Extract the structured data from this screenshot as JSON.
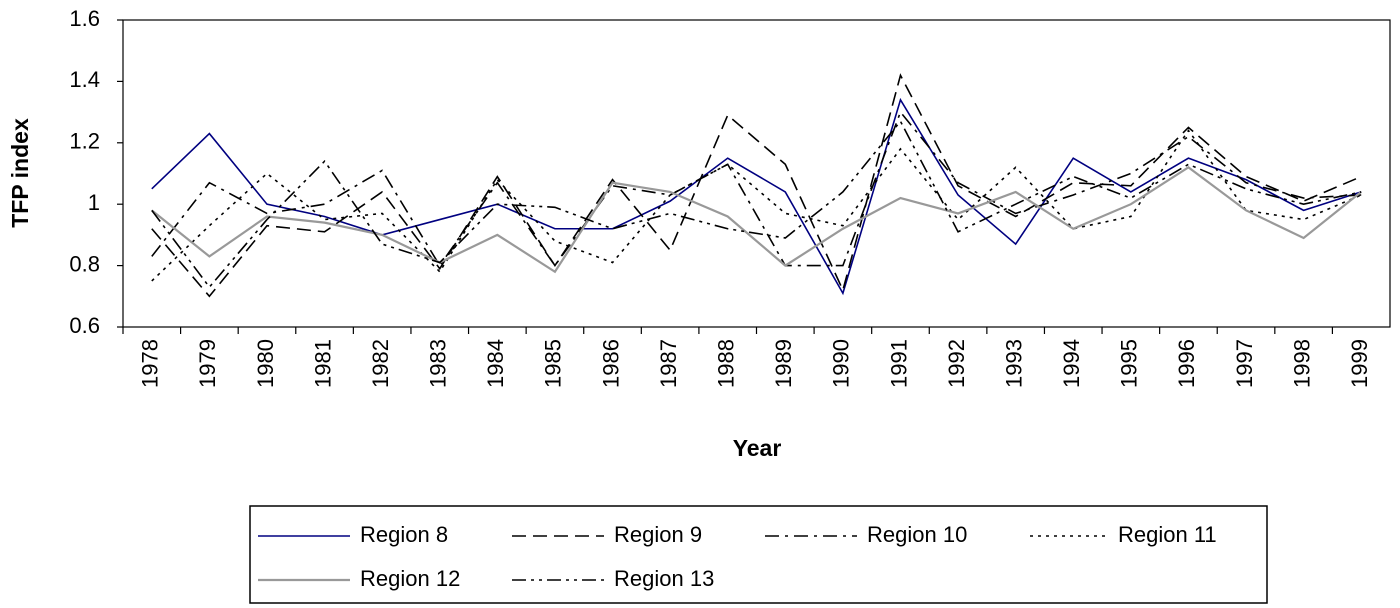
{
  "chart_data": {
    "type": "line",
    "y_label": "TFP index",
    "x_label": "Year",
    "categories": [
      "1978",
      "1979",
      "1980",
      "1981",
      "1982",
      "1983",
      "1984",
      "1985",
      "1986",
      "1987",
      "1988",
      "1989",
      "1990",
      "1991",
      "1992",
      "1993",
      "1994",
      "1995",
      "1996",
      "1997",
      "1998",
      "1999"
    ],
    "ylim": [
      0.6,
      1.6
    ],
    "yticks": [
      0.6,
      0.8,
      1,
      1.2,
      1.4,
      1.6
    ],
    "grid": false,
    "legend": "bottom",
    "series": [
      {
        "name": "Region 8",
        "color": "#000080",
        "line_style": "solid",
        "values": [
          1.05,
          1.23,
          1.0,
          0.96,
          0.9,
          0.95,
          1.0,
          0.92,
          0.92,
          1.01,
          1.15,
          1.04,
          0.71,
          1.34,
          1.03,
          0.87,
          1.15,
          1.04,
          1.15,
          1.08,
          0.98,
          1.04
        ]
      },
      {
        "name": "Region 9",
        "color": "#000000",
        "line_style": "dashed",
        "values": [
          0.92,
          0.7,
          0.93,
          0.91,
          1.04,
          0.79,
          1.09,
          0.8,
          1.08,
          0.85,
          1.29,
          1.13,
          0.72,
          1.42,
          1.06,
          0.96,
          1.07,
          1.06,
          1.25,
          1.09,
          1.01,
          1.09
        ]
      },
      {
        "name": "Region 10",
        "color": "#000000",
        "line_style": "dash-dot",
        "values": [
          0.83,
          1.07,
          0.97,
          1.0,
          1.11,
          0.8,
          1.07,
          0.8,
          1.06,
          1.03,
          1.13,
          0.8,
          0.8,
          1.3,
          1.07,
          0.97,
          1.03,
          1.1,
          1.22,
          1.07,
          1.02,
          1.03
        ]
      },
      {
        "name": "Region 11",
        "color": "#000000",
        "line_style": "dotted",
        "values": [
          0.75,
          0.93,
          1.1,
          0.95,
          0.97,
          0.78,
          1.08,
          0.88,
          0.81,
          1.03,
          1.13,
          0.97,
          0.93,
          1.18,
          0.95,
          1.12,
          0.92,
          0.96,
          1.24,
          0.98,
          0.95,
          1.03
        ]
      },
      {
        "name": "Region 12",
        "color": "#999999",
        "line_style": "solid",
        "values": [
          0.98,
          0.83,
          0.96,
          0.94,
          0.9,
          0.81,
          0.9,
          0.78,
          1.07,
          1.04,
          0.96,
          0.8,
          0.92,
          1.02,
          0.97,
          1.04,
          0.92,
          1.0,
          1.12,
          0.98,
          0.89,
          1.04
        ]
      },
      {
        "name": "Region 13",
        "color": "#000000",
        "line_style": "dash-dot-dot",
        "values": [
          0.98,
          0.73,
          0.95,
          1.14,
          0.87,
          0.81,
          1.0,
          0.99,
          0.92,
          0.97,
          0.92,
          0.89,
          1.04,
          1.27,
          0.91,
          1.0,
          1.09,
          1.02,
          1.13,
          1.05,
          1.0,
          1.04
        ]
      }
    ]
  }
}
